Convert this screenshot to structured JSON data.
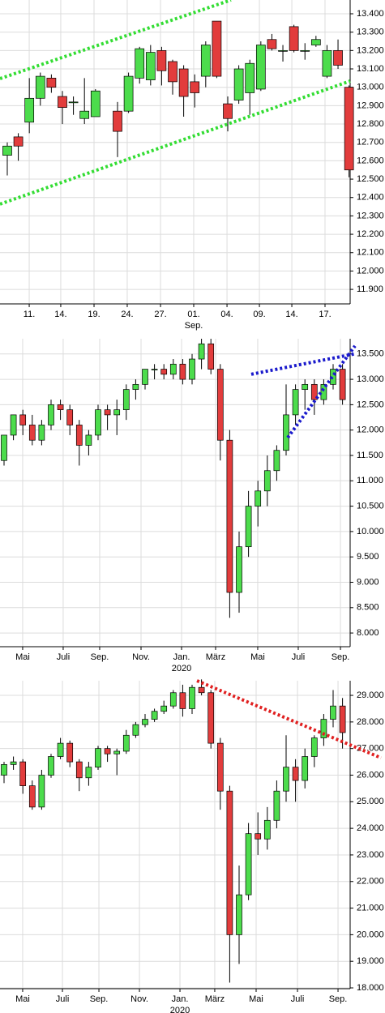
{
  "chart_data": [
    {
      "type": "candlestick",
      "up_color": "#4cdc4c",
      "down_color": "#e23c3c",
      "grid": true,
      "categories": [
        null,
        null,
        null,
        null,
        null,
        null,
        null,
        null,
        null,
        null,
        null,
        null,
        null,
        null,
        null,
        null,
        null,
        null,
        null,
        null,
        null,
        null,
        null,
        null,
        null,
        null,
        null,
        null,
        null,
        null,
        null,
        null
      ],
      "open": [
        12.63,
        12.73,
        12.81,
        12.94,
        13.05,
        12.95,
        12.92,
        12.83,
        12.84,
        null,
        12.87,
        12.87,
        13.05,
        13.04,
        13.2,
        13.14,
        13.1,
        13.03,
        13.06,
        13.36,
        12.91,
        12.93,
        12.97,
        12.99,
        13.26,
        13.2,
        13.33,
        13.2,
        13.23,
        13.06,
        13.2,
        13.0
      ],
      "high": [
        12.7,
        12.75,
        13.05,
        13.08,
        13.07,
        12.98,
        12.95,
        13.05,
        12.99,
        null,
        12.92,
        13.08,
        13.22,
        13.23,
        13.22,
        13.15,
        13.12,
        13.07,
        13.25,
        13.36,
        12.95,
        13.12,
        13.15,
        13.25,
        13.29,
        13.23,
        13.34,
        13.24,
        13.28,
        13.23,
        13.26,
        13.01
      ],
      "low": [
        12.52,
        12.6,
        12.75,
        12.9,
        12.97,
        12.8,
        12.85,
        12.8,
        12.84,
        null,
        12.62,
        12.86,
        13.02,
        13.01,
        13.01,
        12.96,
        12.84,
        12.89,
        13.0,
        13.05,
        12.76,
        12.91,
        12.85,
        12.98,
        13.2,
        13.14,
        13.19,
        13.15,
        13.22,
        13.05,
        13.1,
        12.51
      ],
      "close": [
        12.68,
        12.68,
        12.94,
        13.06,
        13.0,
        12.89,
        12.92,
        12.87,
        12.98,
        null,
        12.76,
        13.06,
        13.21,
        13.19,
        13.09,
        13.03,
        12.95,
        12.97,
        13.23,
        13.06,
        12.83,
        13.1,
        13.13,
        13.23,
        13.21,
        13.2,
        13.2,
        13.2,
        13.26,
        13.2,
        13.12,
        12.55
      ],
      "xlim": [
        -0.66,
        31.1
      ],
      "ylim": [
        11.821,
        13.475
      ],
      "xticks": [
        {
          "value": 1.99,
          "label": "11."
        },
        {
          "value": 4.85,
          "label": "14."
        },
        {
          "value": 7.87,
          "label": "19."
        },
        {
          "value": 10.88,
          "label": "24."
        },
        {
          "value": 13.9,
          "label": "27."
        },
        {
          "value": 16.91,
          "label": "01.",
          "sublabel": "Sep."
        },
        {
          "value": 19.93,
          "label": "04."
        },
        {
          "value": 22.87,
          "label": "09."
        },
        {
          "value": 25.81,
          "label": "14."
        },
        {
          "value": 28.82,
          "label": "17."
        }
      ],
      "yticks": [
        {
          "value": 11.9,
          "label": "11.900"
        },
        {
          "value": 12.0,
          "label": "12.000"
        },
        {
          "value": 12.1,
          "label": "12.100"
        },
        {
          "value": 12.2,
          "label": "12.200"
        },
        {
          "value": 12.3,
          "label": "12.300"
        },
        {
          "value": 12.4,
          "label": "12.400"
        },
        {
          "value": 12.5,
          "label": "12.500"
        },
        {
          "value": 12.6,
          "label": "12.600"
        },
        {
          "value": 12.7,
          "label": "12.700"
        },
        {
          "value": 12.8,
          "label": "12.800"
        },
        {
          "value": 12.9,
          "label": "12.900"
        },
        {
          "value": 13.0,
          "label": "13.000"
        },
        {
          "value": 13.1,
          "label": "13.100"
        },
        {
          "value": 13.2,
          "label": "13.200"
        },
        {
          "value": 13.3,
          "label": "13.300"
        },
        {
          "value": 13.4,
          "label": "13.400"
        }
      ],
      "trendlines": [
        {
          "color": "#33dd33",
          "x": [
            -0.66,
            20.29
          ],
          "y": [
            13.047,
            13.475
          ]
        },
        {
          "color": "#33dd33",
          "x": [
            -0.66,
            31.1
          ],
          "y": [
            12.364,
            13.034
          ]
        }
      ]
    },
    {
      "type": "candlestick",
      "up_color": "#4cdc4c",
      "down_color": "#e23c3c",
      "grid": true,
      "categories": [
        null,
        null,
        null,
        null,
        null,
        null,
        null,
        null,
        null,
        null,
        null,
        null,
        null,
        null,
        null,
        null,
        null,
        null,
        null,
        null,
        null,
        null,
        null,
        null,
        null,
        null,
        null,
        null,
        null,
        null,
        null,
        null,
        null,
        null,
        null,
        null,
        null
      ],
      "open": [
        11.4,
        11.9,
        12.3,
        12.1,
        11.8,
        12.1,
        12.5,
        12.4,
        12.1,
        11.7,
        11.9,
        12.4,
        12.3,
        12.4,
        12.8,
        12.9,
        13.2,
        13.2,
        13.1,
        13.3,
        13.0,
        13.4,
        13.7,
        13.2,
        11.8,
        8.8,
        9.7,
        10.5,
        10.8,
        11.2,
        11.6,
        12.3,
        12.8,
        12.9,
        12.6,
        12.9,
        13.2
      ],
      "high": [
        11.9,
        12.3,
        12.4,
        12.3,
        12.2,
        12.6,
        12.6,
        12.5,
        12.2,
        12.0,
        12.5,
        12.5,
        12.6,
        12.9,
        13.0,
        13.2,
        13.3,
        13.3,
        13.4,
        13.4,
        13.5,
        13.8,
        13.8,
        13.3,
        12.0,
        10.0,
        10.8,
        11.0,
        11.5,
        11.7,
        12.9,
        12.9,
        13.0,
        13.0,
        13.0,
        13.3,
        13.3
      ],
      "low": [
        11.3,
        11.8,
        11.9,
        11.7,
        11.7,
        12.0,
        12.2,
        11.9,
        11.3,
        11.5,
        11.8,
        12.0,
        11.9,
        12.2,
        12.6,
        12.8,
        13.0,
        13.0,
        13.0,
        12.9,
        12.9,
        13.2,
        13.1,
        11.4,
        8.3,
        8.4,
        9.5,
        10.1,
        10.5,
        11.0,
        11.5,
        12.1,
        12.4,
        12.3,
        12.5,
        12.8,
        12.5
      ],
      "close": [
        11.9,
        12.3,
        12.1,
        11.8,
        12.1,
        12.5,
        12.4,
        12.1,
        11.7,
        11.9,
        12.4,
        12.3,
        12.4,
        12.8,
        12.9,
        13.2,
        13.2,
        13.1,
        13.3,
        13.0,
        13.4,
        13.7,
        13.2,
        11.8,
        8.8,
        9.7,
        10.5,
        10.8,
        11.2,
        11.6,
        12.3,
        12.8,
        12.9,
        12.6,
        12.9,
        13.2,
        12.6
      ],
      "xlim": [
        -0.43,
        36.81
      ],
      "ylim": [
        7.73,
        13.8
      ],
      "xticks": [
        {
          "value": 1.98,
          "label": "Mai"
        },
        {
          "value": 6.29,
          "label": "Juli"
        },
        {
          "value": 10.17,
          "label": "Sep."
        },
        {
          "value": 14.57,
          "label": "Nov."
        },
        {
          "value": 18.88,
          "label": "Jan.",
          "sublabel": "2020"
        },
        {
          "value": 22.5,
          "label": "März"
        },
        {
          "value": 26.98,
          "label": "Mai"
        },
        {
          "value": 31.29,
          "label": "Juli"
        },
        {
          "value": 35.78,
          "label": "Sep."
        }
      ],
      "yticks": [
        {
          "value": 8.0,
          "label": "8.000"
        },
        {
          "value": 8.5,
          "label": "8.500"
        },
        {
          "value": 9.0,
          "label": "9.000"
        },
        {
          "value": 9.5,
          "label": "9.500"
        },
        {
          "value": 10.0,
          "label": "10.000"
        },
        {
          "value": 10.5,
          "label": "10.500"
        },
        {
          "value": 11.0,
          "label": "11.000"
        },
        {
          "value": 11.5,
          "label": "11.500"
        },
        {
          "value": 12.0,
          "label": "12.000"
        },
        {
          "value": 12.5,
          "label": "12.500"
        },
        {
          "value": 13.0,
          "label": "13.000"
        },
        {
          "value": 13.5,
          "label": "13.500"
        }
      ],
      "trendlines": [
        {
          "color": "#1a1acc",
          "x": [
            26.29,
            37.24
          ],
          "y": [
            13.1,
            13.5
          ]
        },
        {
          "color": "#1a1acc",
          "x": [
            30.17,
            37.33
          ],
          "y": [
            11.85,
            13.66
          ]
        }
      ]
    },
    {
      "type": "candlestick",
      "up_color": "#4cdc4c",
      "down_color": "#e23c3c",
      "grid": true,
      "categories": [
        null,
        null,
        null,
        null,
        null,
        null,
        null,
        null,
        null,
        null,
        null,
        null,
        null,
        null,
        null,
        null,
        null,
        null,
        null,
        null,
        null,
        null,
        null,
        null,
        null,
        null,
        null,
        null,
        null,
        null,
        null,
        null,
        null,
        null,
        null,
        null,
        null
      ],
      "open": [
        26.0,
        26.4,
        26.5,
        25.6,
        24.8,
        26.0,
        26.7,
        27.2,
        26.5,
        25.9,
        26.3,
        27.0,
        26.8,
        26.9,
        27.5,
        27.9,
        28.1,
        28.4,
        28.6,
        29.1,
        28.5,
        29.3,
        29.1,
        27.2,
        25.4,
        20.0,
        21.5,
        23.8,
        23.6,
        24.3,
        25.4,
        26.3,
        25.8,
        26.7,
        27.4,
        28.1,
        28.6
      ],
      "high": [
        26.5,
        26.7,
        26.6,
        25.8,
        26.2,
        26.8,
        27.4,
        27.3,
        26.6,
        26.5,
        27.1,
        27.1,
        27.0,
        27.7,
        28.0,
        28.3,
        28.5,
        28.8,
        29.2,
        29.4,
        29.4,
        29.6,
        29.2,
        27.4,
        25.6,
        22.6,
        24.2,
        24.6,
        24.8,
        25.8,
        27.5,
        26.6,
        27.0,
        27.5,
        28.3,
        29.2,
        28.9
      ],
      "low": [
        25.7,
        26.2,
        25.3,
        24.7,
        24.7,
        25.9,
        26.6,
        26.3,
        25.4,
        25.6,
        26.2,
        26.5,
        26.0,
        26.8,
        27.4,
        27.8,
        28.0,
        28.3,
        28.5,
        28.2,
        28.3,
        29.0,
        27.0,
        24.7,
        18.2,
        18.9,
        21.3,
        23.0,
        23.2,
        24.0,
        25.0,
        25.0,
        25.5,
        26.3,
        27.1,
        27.8,
        27.0
      ],
      "close": [
        26.4,
        26.5,
        25.6,
        24.8,
        26.0,
        26.7,
        27.2,
        26.5,
        25.9,
        26.3,
        27.0,
        26.8,
        26.9,
        27.5,
        27.9,
        28.1,
        28.4,
        28.6,
        29.1,
        28.5,
        29.3,
        29.1,
        27.2,
        25.4,
        20.0,
        21.5,
        23.8,
        23.6,
        24.3,
        25.4,
        26.3,
        25.8,
        26.7,
        27.4,
        28.1,
        28.6,
        27.6
      ],
      "xlim": [
        -0.43,
        36.81
      ],
      "ylim": [
        17.97,
        29.55
      ],
      "xticks": [
        {
          "value": 1.98,
          "label": "Mai"
        },
        {
          "value": 6.21,
          "label": "Juli"
        },
        {
          "value": 10.09,
          "label": "Sep."
        },
        {
          "value": 14.4,
          "label": "Nov."
        },
        {
          "value": 18.71,
          "label": "Jan.",
          "sublabel": "2020"
        },
        {
          "value": 22.41,
          "label": "März"
        },
        {
          "value": 26.81,
          "label": "Mai"
        },
        {
          "value": 31.21,
          "label": "Juli"
        },
        {
          "value": 35.52,
          "label": "Sep."
        }
      ],
      "yticks": [
        {
          "value": 18,
          "label": "18.000"
        },
        {
          "value": 19,
          "label": "19.000"
        },
        {
          "value": 20,
          "label": "20.000"
        },
        {
          "value": 21,
          "label": "21.000"
        },
        {
          "value": 22,
          "label": "22.000"
        },
        {
          "value": 23,
          "label": "23.000"
        },
        {
          "value": 24,
          "label": "24.000"
        },
        {
          "value": 25,
          "label": "25.000"
        },
        {
          "value": 26,
          "label": "26.000"
        },
        {
          "value": 27,
          "label": "27.000"
        },
        {
          "value": 28,
          "label": "28.000"
        },
        {
          "value": 29,
          "label": "29.000"
        }
      ],
      "trendlines": [
        {
          "color": "#e02020",
          "x": [
            20.52,
            40.09
          ],
          "y": [
            29.55,
            26.65
          ]
        }
      ]
    }
  ]
}
